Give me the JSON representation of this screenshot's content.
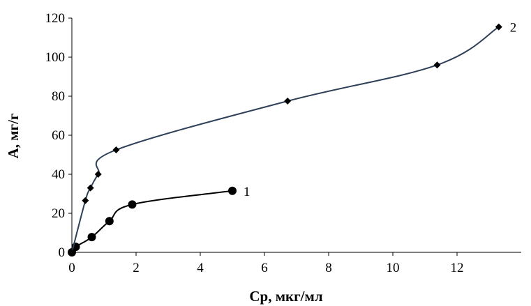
{
  "chart_data": {
    "type": "line",
    "title": "",
    "xlabel": "Ср, мкг/мл",
    "ylabel": "А, мг/г",
    "xlim": [
      0,
      14
    ],
    "ylim": [
      0,
      120
    ],
    "x_ticks": [
      0,
      2,
      4,
      6,
      8,
      10,
      12
    ],
    "y_ticks": [
      0,
      20,
      40,
      60,
      80,
      100,
      120
    ],
    "grid": false,
    "legend": "none",
    "series": [
      {
        "label": "1",
        "marker": "circle",
        "color": "#000000",
        "points": [
          {
            "x": 0,
            "y": 0
          },
          {
            "x": 0.12,
            "y": 2.8
          },
          {
            "x": 0.62,
            "y": 7.8
          },
          {
            "x": 1.17,
            "y": 16
          },
          {
            "x": 1.88,
            "y": 24.5
          },
          {
            "x": 5.0,
            "y": 31.5
          }
        ]
      },
      {
        "label": "2",
        "marker": "diamond",
        "color": "#2f4158",
        "points": [
          {
            "x": 0,
            "y": 0
          },
          {
            "x": 0.42,
            "y": 26.5
          },
          {
            "x": 0.58,
            "y": 33
          },
          {
            "x": 0.82,
            "y": 40
          },
          {
            "x": 1.38,
            "y": 52.5
          },
          {
            "x": 6.72,
            "y": 77.5
          },
          {
            "x": 11.38,
            "y": 96
          },
          {
            "x": 13.3,
            "y": 115.5
          }
        ]
      }
    ]
  }
}
